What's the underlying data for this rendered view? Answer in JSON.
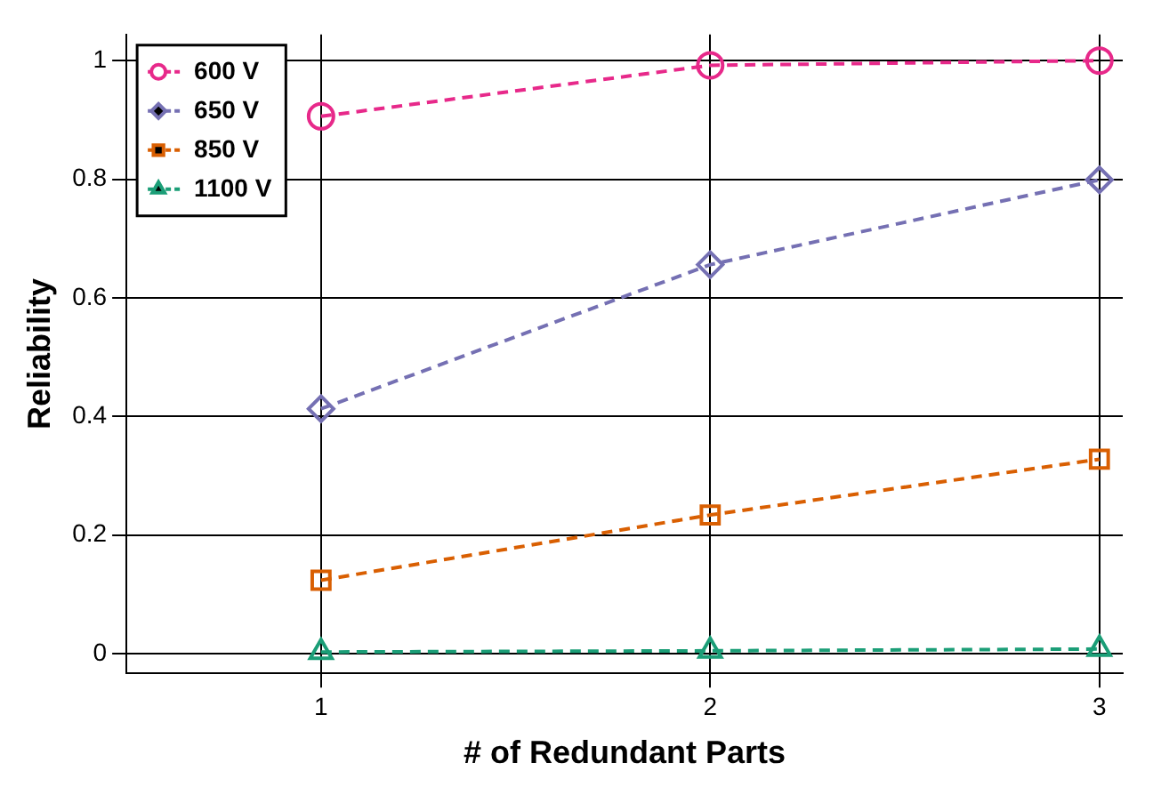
{
  "chart_data": {
    "type": "line",
    "xlabel": "# of Redundant Parts",
    "ylabel": "Reliability",
    "x": [
      1,
      2,
      3
    ],
    "series": [
      {
        "name": "600 V",
        "color": "#e7298a",
        "marker": "circle",
        "values": [
          0.906,
          0.992,
          1.0
        ]
      },
      {
        "name": "650 V",
        "color": "#7570b3",
        "marker": "diamond",
        "values": [
          0.413,
          0.656,
          0.799
        ]
      },
      {
        "name": "850 V",
        "color": "#d95f02",
        "marker": "square",
        "values": [
          0.124,
          0.234,
          0.328
        ]
      },
      {
        "name": "1100 V",
        "color": "#1b9e77",
        "marker": "triangle",
        "values": [
          0.003,
          0.005,
          0.008
        ]
      }
    ],
    "xlim": [
      0.5,
      3.06
    ],
    "xticks": [
      1,
      2,
      3
    ],
    "ylim": [
      -0.033,
      1.044
    ],
    "yticks": [
      0,
      0.2,
      0.4,
      0.6,
      0.8,
      1
    ],
    "grid": true,
    "legend": "top left",
    "line_style": "dashed"
  }
}
